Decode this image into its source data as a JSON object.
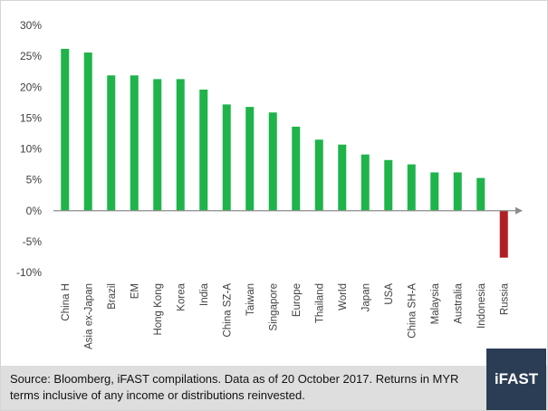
{
  "chart_data": {
    "type": "bar",
    "categories": [
      "China H",
      "Asia ex-Japan",
      "Brazil",
      "EM",
      "Hong Kong",
      "Korea",
      "India",
      "China SZ-A",
      "Taiwan",
      "Singapore",
      "Europe",
      "Thailand",
      "World",
      "Japan",
      "USA",
      "China SH-A",
      "Malaysia",
      "Australia",
      "Indonesia",
      "Russia"
    ],
    "values": [
      26.2,
      25.6,
      21.9,
      21.9,
      21.3,
      21.3,
      19.6,
      17.2,
      16.8,
      15.9,
      13.6,
      11.5,
      10.7,
      9.1,
      8.2,
      7.5,
      6.2,
      6.2,
      5.3,
      -7.6
    ],
    "ylim": [
      -10,
      30
    ],
    "yticks": [
      -10,
      -5,
      0,
      5,
      10,
      15,
      20,
      25,
      30
    ],
    "ytick_format": "percent",
    "title": "",
    "xlabel": "",
    "ylabel": "",
    "positive_color": "#1eb44a",
    "negative_color": "#b01f24",
    "grid": false
  },
  "footer": {
    "source": "Source: Bloomberg, iFAST compilations. Data as of 20 October 2017.  Returns in MYR terms inclusive of any income or distributions reinvested."
  },
  "logo": {
    "text": "iFAST"
  }
}
